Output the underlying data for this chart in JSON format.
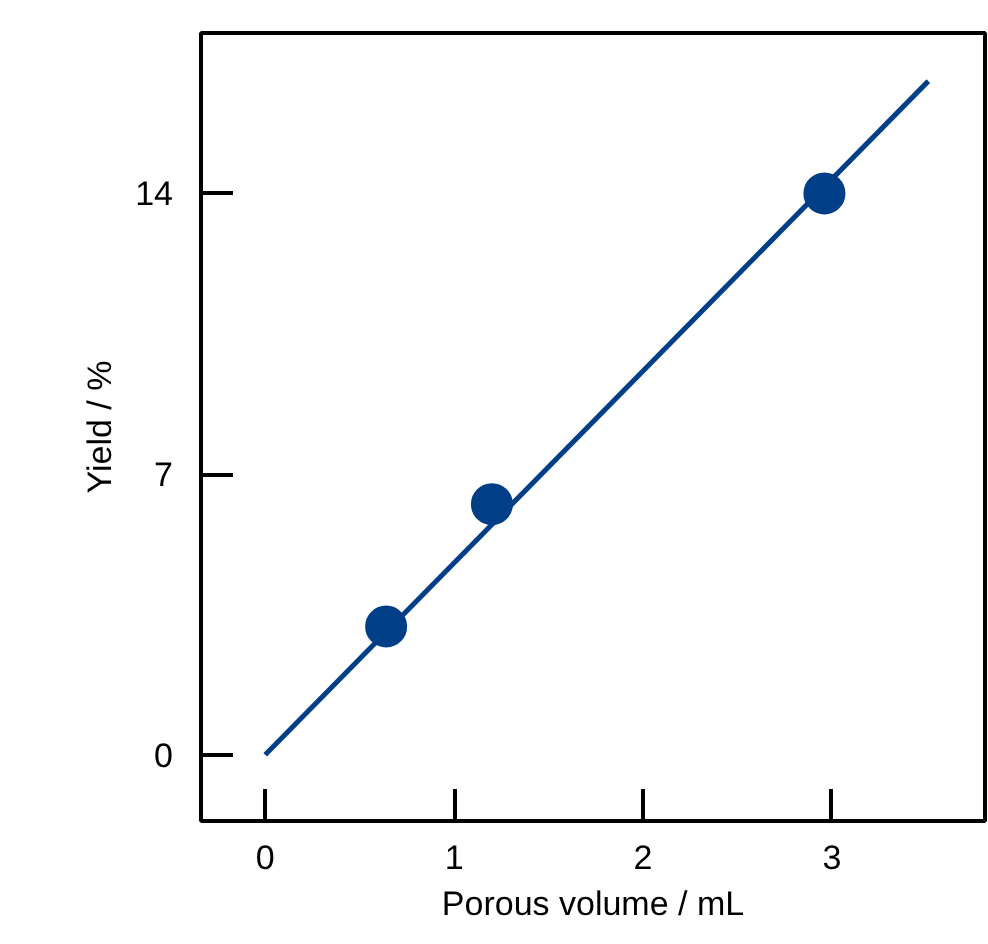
{
  "chart_data": {
    "type": "scatter",
    "xlabel": "Porous volume / mL",
    "ylabel": "Yield / %",
    "xlim": [
      -0.34,
      3.81
    ],
    "ylim": [
      -1.65,
      18
    ],
    "xticks": [
      0,
      1,
      2,
      3
    ],
    "yticks": [
      0,
      7,
      14
    ],
    "grid": false,
    "marker": "circle",
    "series": [
      {
        "color": "#003f87",
        "x": [
          0.64,
          1.2,
          2.96
        ],
        "values": [
          3.2,
          6.25,
          14.0
        ]
      },
      {
        "type": "line",
        "color": "#003f87",
        "x": [
          0,
          3.51
        ],
        "values": [
          0,
          16.8
        ],
        "line_style": "solid",
        "marker": "none"
      }
    ]
  }
}
